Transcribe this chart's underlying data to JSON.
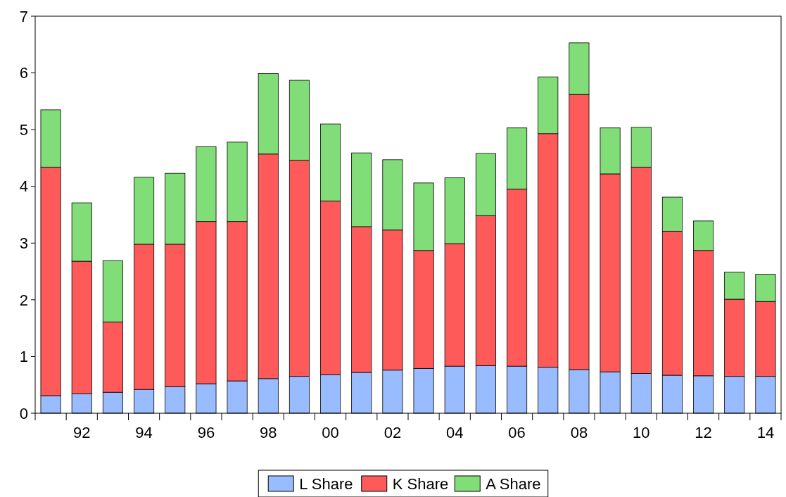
{
  "chart_data": {
    "type": "bar",
    "stacked": true,
    "categories": [
      null,
      "92",
      null,
      "94",
      null,
      "96",
      null,
      "98",
      null,
      "00",
      null,
      "02",
      null,
      "04",
      null,
      "06",
      null,
      "08",
      null,
      "10",
      null,
      "12",
      null,
      "14"
    ],
    "series": [
      {
        "name": "L Share",
        "color": "#99bbff",
        "values": [
          0.31,
          0.34,
          0.37,
          0.42,
          0.47,
          0.52,
          0.57,
          0.61,
          0.65,
          0.68,
          0.72,
          0.76,
          0.79,
          0.83,
          0.84,
          0.83,
          0.81,
          0.77,
          0.73,
          0.7,
          0.67,
          0.66,
          0.65,
          0.65
        ]
      },
      {
        "name": "K Share",
        "color": "#ff5a5a",
        "values": [
          4.03,
          2.34,
          1.24,
          2.56,
          2.51,
          2.86,
          2.81,
          3.96,
          3.81,
          3.06,
          2.57,
          2.47,
          2.08,
          2.16,
          2.64,
          3.12,
          4.12,
          4.85,
          3.49,
          3.64,
          2.54,
          2.21,
          1.36,
          1.32
        ]
      },
      {
        "name": "A Share",
        "color": "#80dd77",
        "values": [
          1.01,
          1.03,
          1.08,
          1.18,
          1.25,
          1.32,
          1.4,
          1.42,
          1.41,
          1.36,
          1.3,
          1.24,
          1.19,
          1.16,
          1.1,
          1.08,
          1.0,
          0.91,
          0.81,
          0.7,
          0.6,
          0.52,
          0.48,
          0.48
        ]
      }
    ],
    "ylim": [
      0,
      7
    ],
    "yticks": [
      0,
      1,
      2,
      3,
      4,
      5,
      6,
      7
    ],
    "grid": false,
    "legend": "bottom"
  }
}
